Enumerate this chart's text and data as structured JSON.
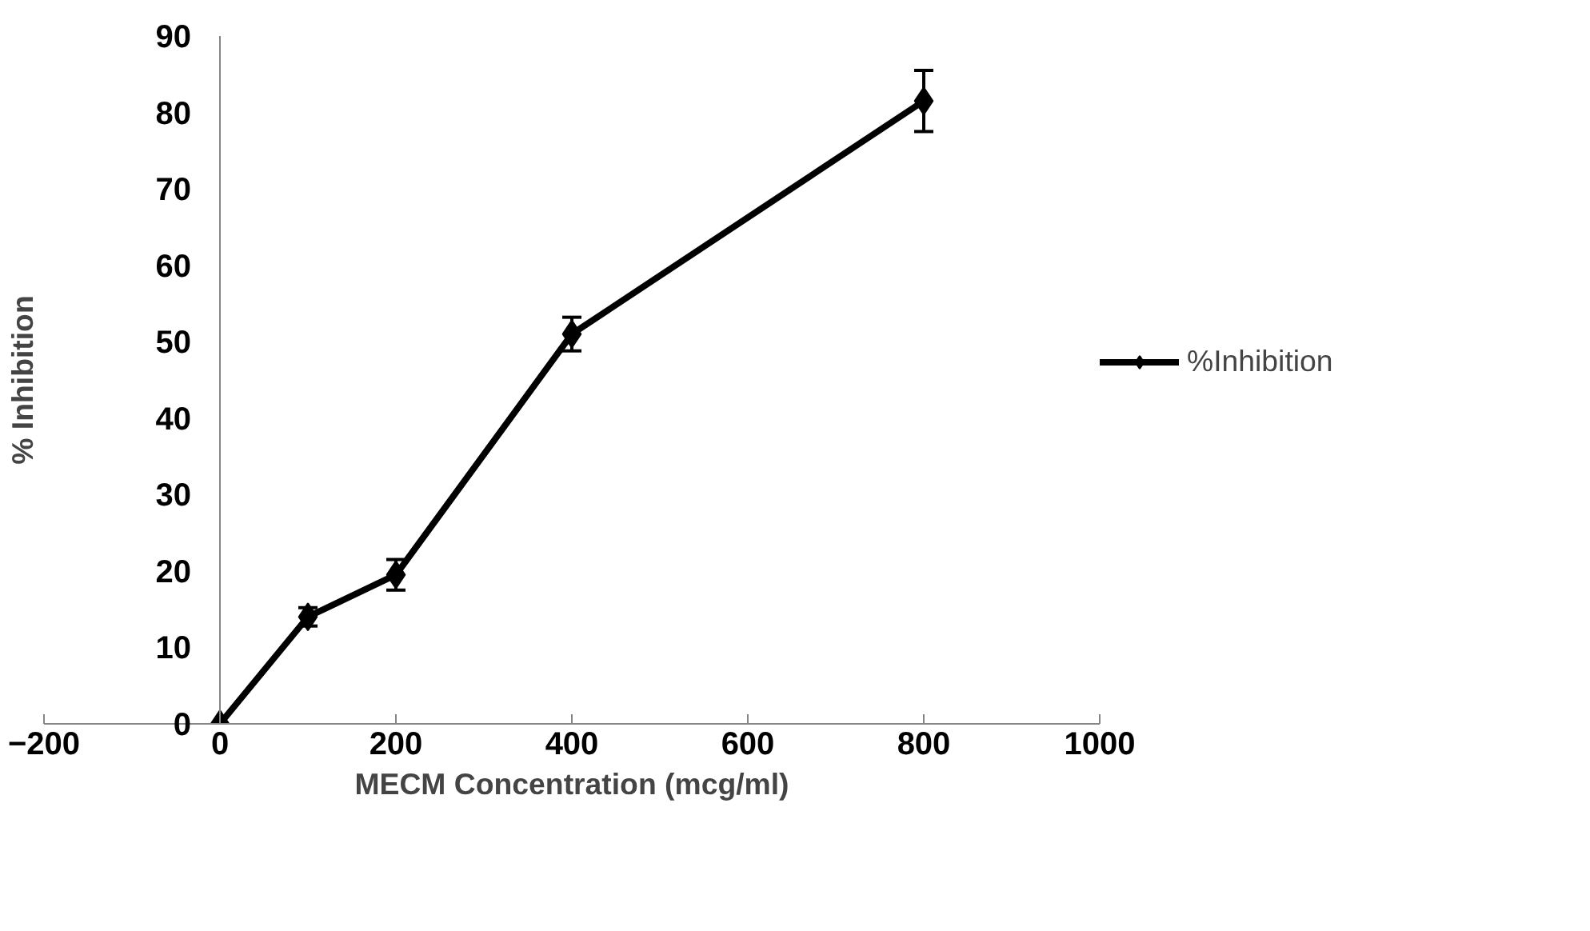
{
  "chart_data": {
    "type": "line",
    "xlabel": "MECM Concentration (mcg/ml)",
    "ylabel": "% Inhibition",
    "x": [
      0,
      100,
      200,
      400,
      800
    ],
    "series": [
      {
        "name": "%Inhibition",
        "color": "#000000",
        "values": [
          0,
          14,
          19.5,
          51,
          81.5
        ],
        "errors": [
          null,
          1.2,
          2,
          2.2,
          4
        ]
      }
    ],
    "xlim": [
      -200,
      1000
    ],
    "xticks": [
      -200,
      0,
      200,
      400,
      600,
      800,
      1000
    ],
    "ylim": [
      0,
      90
    ],
    "yticks": [
      0,
      10,
      20,
      30,
      40,
      50,
      60,
      70,
      80,
      90
    ],
    "grid": false,
    "legend": "right",
    "marker": "diamond",
    "line_style": "solid"
  }
}
